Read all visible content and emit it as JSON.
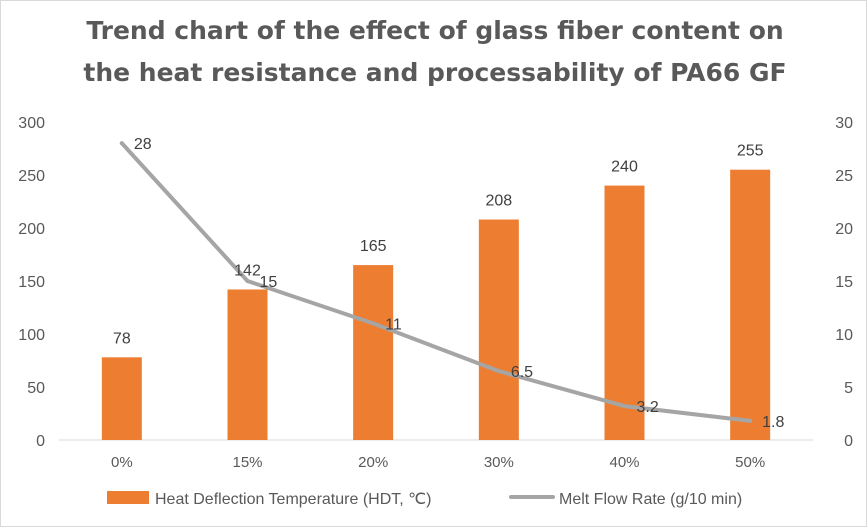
{
  "chart_data": {
    "type": "bar",
    "title_lines": [
      "Trend chart of the effect of glass fiber content on",
      "the heat resistance and processability of PA66 GF"
    ],
    "categories": [
      "0%",
      "15%",
      "20%",
      "30%",
      "40%",
      "50%"
    ],
    "series": [
      {
        "name": "Heat Deflection Temperature (HDT, ℃)",
        "type": "bar",
        "axis": "left",
        "color": "#ed7d31",
        "values": [
          78,
          142,
          165,
          208,
          240,
          255
        ]
      },
      {
        "name": "Melt Flow Rate (g/10 min)",
        "type": "line",
        "axis": "right",
        "color": "#a5a5a5",
        "values": [
          28,
          15,
          11,
          6.5,
          3.2,
          1.8
        ]
      }
    ],
    "y_left": {
      "ylim": [
        0,
        300
      ],
      "ticks": [
        "0",
        "50",
        "100",
        "150",
        "200",
        "250",
        "300"
      ]
    },
    "y_right": {
      "ylim": [
        0,
        30
      ],
      "ticks": [
        "0",
        "5",
        "10",
        "15",
        "20",
        "25",
        "30"
      ]
    },
    "grid": false,
    "legend_position": "bottom"
  }
}
